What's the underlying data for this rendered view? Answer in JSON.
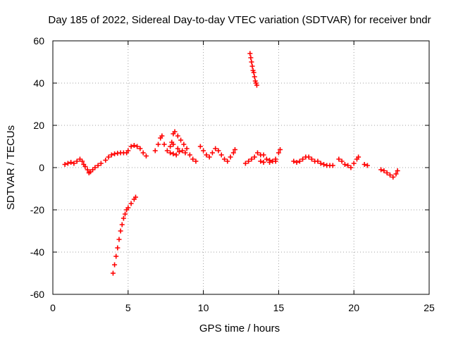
{
  "chart_data": {
    "type": "scatter",
    "title": "Day 185 of 2022, Sidereal Day-to-day VTEC variation (SDTVAR) for receiver bndr",
    "xlabel": "GPS time / hours",
    "ylabel": "SDTVAR / TECUs",
    "xlim": [
      0,
      25
    ],
    "ylim": [
      -60,
      60
    ],
    "xticks": [
      0,
      5,
      10,
      15,
      20,
      25
    ],
    "yticks": [
      -60,
      -40,
      -20,
      0,
      20,
      40,
      60
    ],
    "grid": true,
    "marker": "plus",
    "color": "#ff0000",
    "series": [
      {
        "points": [
          [
            0.8,
            1.5
          ],
          [
            1.0,
            2.0
          ],
          [
            1.2,
            2.5
          ],
          [
            1.4,
            2.0
          ],
          [
            1.6,
            3.0
          ],
          [
            1.8,
            4.0
          ],
          [
            1.95,
            3.0
          ],
          [
            2.05,
            1.5
          ],
          [
            2.15,
            0.5
          ],
          [
            2.3,
            -1.0
          ],
          [
            2.4,
            -2.5
          ],
          [
            2.5,
            -2.0
          ],
          [
            2.65,
            -1.0
          ],
          [
            2.8,
            0.0
          ],
          [
            3.0,
            1.0
          ],
          [
            3.2,
            2.0
          ],
          [
            3.5,
            3.5
          ],
          [
            3.7,
            5.0
          ],
          [
            3.9,
            6.0
          ],
          [
            4.1,
            6.5
          ],
          [
            4.3,
            6.8
          ],
          [
            4.5,
            7.0
          ],
          [
            4.7,
            7.0
          ],
          [
            4.9,
            7.0
          ],
          [
            4.0,
            -50
          ],
          [
            4.1,
            -46
          ],
          [
            4.2,
            -42
          ],
          [
            4.3,
            -38
          ],
          [
            4.4,
            -34
          ],
          [
            4.5,
            -30
          ],
          [
            4.6,
            -27
          ],
          [
            4.7,
            -24
          ],
          [
            4.8,
            -22
          ],
          [
            4.9,
            -20
          ],
          [
            5.0,
            -19
          ],
          [
            5.2,
            -17
          ],
          [
            5.4,
            -15
          ],
          [
            5.5,
            -14
          ],
          [
            5.0,
            8.0
          ],
          [
            5.2,
            10.0
          ],
          [
            5.4,
            10.5
          ],
          [
            5.6,
            10.0
          ],
          [
            5.8,
            9.0
          ],
          [
            6.0,
            7.0
          ],
          [
            6.2,
            5.5
          ],
          [
            6.8,
            8.0
          ],
          [
            7.0,
            11.0
          ],
          [
            7.15,
            14.0
          ],
          [
            7.25,
            15.0
          ],
          [
            7.4,
            11.0
          ],
          [
            7.6,
            8.0
          ],
          [
            7.8,
            7.0
          ],
          [
            8.0,
            6.5
          ],
          [
            8.2,
            6.0
          ],
          [
            8.4,
            7.5
          ],
          [
            8.6,
            8.0
          ],
          [
            8.8,
            7.0
          ],
          [
            7.9,
            12.0
          ],
          [
            8.0,
            16.0
          ],
          [
            8.1,
            17.0
          ],
          [
            8.3,
            15.0
          ],
          [
            8.5,
            13.0
          ],
          [
            8.7,
            11.0
          ],
          [
            8.9,
            9.0
          ],
          [
            9.1,
            6.0
          ],
          [
            9.3,
            4.0
          ],
          [
            9.5,
            3.0
          ],
          [
            7.8,
            10.0
          ],
          [
            8.0,
            11.0
          ],
          [
            8.3,
            9.0
          ],
          [
            9.8,
            10.0
          ],
          [
            10.0,
            8.0
          ],
          [
            10.2,
            6.0
          ],
          [
            10.4,
            5.0
          ],
          [
            10.6,
            7.0
          ],
          [
            10.8,
            9.0
          ],
          [
            11.0,
            8.0
          ],
          [
            11.2,
            6.0
          ],
          [
            11.4,
            4.0
          ],
          [
            11.6,
            3.0
          ],
          [
            11.8,
            5.0
          ],
          [
            12.0,
            7.0
          ],
          [
            12.1,
            8.5
          ],
          [
            12.8,
            2.0
          ],
          [
            13.0,
            3.0
          ],
          [
            13.2,
            4.0
          ],
          [
            13.4,
            5.0
          ],
          [
            13.6,
            7.0
          ],
          [
            13.8,
            6.0
          ],
          [
            14.0,
            6.0
          ],
          [
            14.2,
            4.0
          ],
          [
            14.4,
            3.5
          ],
          [
            14.6,
            3.0
          ],
          [
            14.8,
            4.0
          ],
          [
            15.0,
            7.0
          ],
          [
            15.1,
            8.5
          ],
          [
            13.8,
            3.0
          ],
          [
            14.0,
            2.5
          ],
          [
            14.4,
            2.5
          ],
          [
            14.8,
            3.0
          ],
          [
            13.1,
            54
          ],
          [
            13.15,
            52
          ],
          [
            13.2,
            50
          ],
          [
            13.25,
            48
          ],
          [
            13.3,
            46
          ],
          [
            13.35,
            45
          ],
          [
            13.4,
            43
          ],
          [
            13.45,
            41
          ],
          [
            13.5,
            40
          ],
          [
            13.55,
            39
          ],
          [
            16.0,
            3.0
          ],
          [
            16.2,
            2.5
          ],
          [
            16.4,
            3.0
          ],
          [
            16.6,
            4.0
          ],
          [
            16.8,
            5.0
          ],
          [
            17.0,
            5.0
          ],
          [
            17.2,
            4.0
          ],
          [
            17.4,
            3.0
          ],
          [
            17.6,
            3.0
          ],
          [
            17.8,
            2.0
          ],
          [
            18.0,
            1.5
          ],
          [
            18.2,
            1.0
          ],
          [
            18.4,
            1.0
          ],
          [
            18.6,
            1.0
          ],
          [
            19.0,
            4.0
          ],
          [
            19.2,
            3.0
          ],
          [
            19.4,
            1.5
          ],
          [
            19.6,
            1.0
          ],
          [
            19.8,
            0.0
          ],
          [
            20.0,
            2.0
          ],
          [
            20.2,
            4.0
          ],
          [
            20.3,
            5.0
          ],
          [
            20.7,
            1.5
          ],
          [
            20.9,
            1.0
          ],
          [
            21.8,
            -1.0
          ],
          [
            22.0,
            -1.5
          ],
          [
            22.2,
            -2.5
          ],
          [
            22.4,
            -3.5
          ],
          [
            22.6,
            -4.5
          ],
          [
            22.8,
            -3.0
          ],
          [
            22.9,
            -1.5
          ]
        ]
      }
    ]
  }
}
